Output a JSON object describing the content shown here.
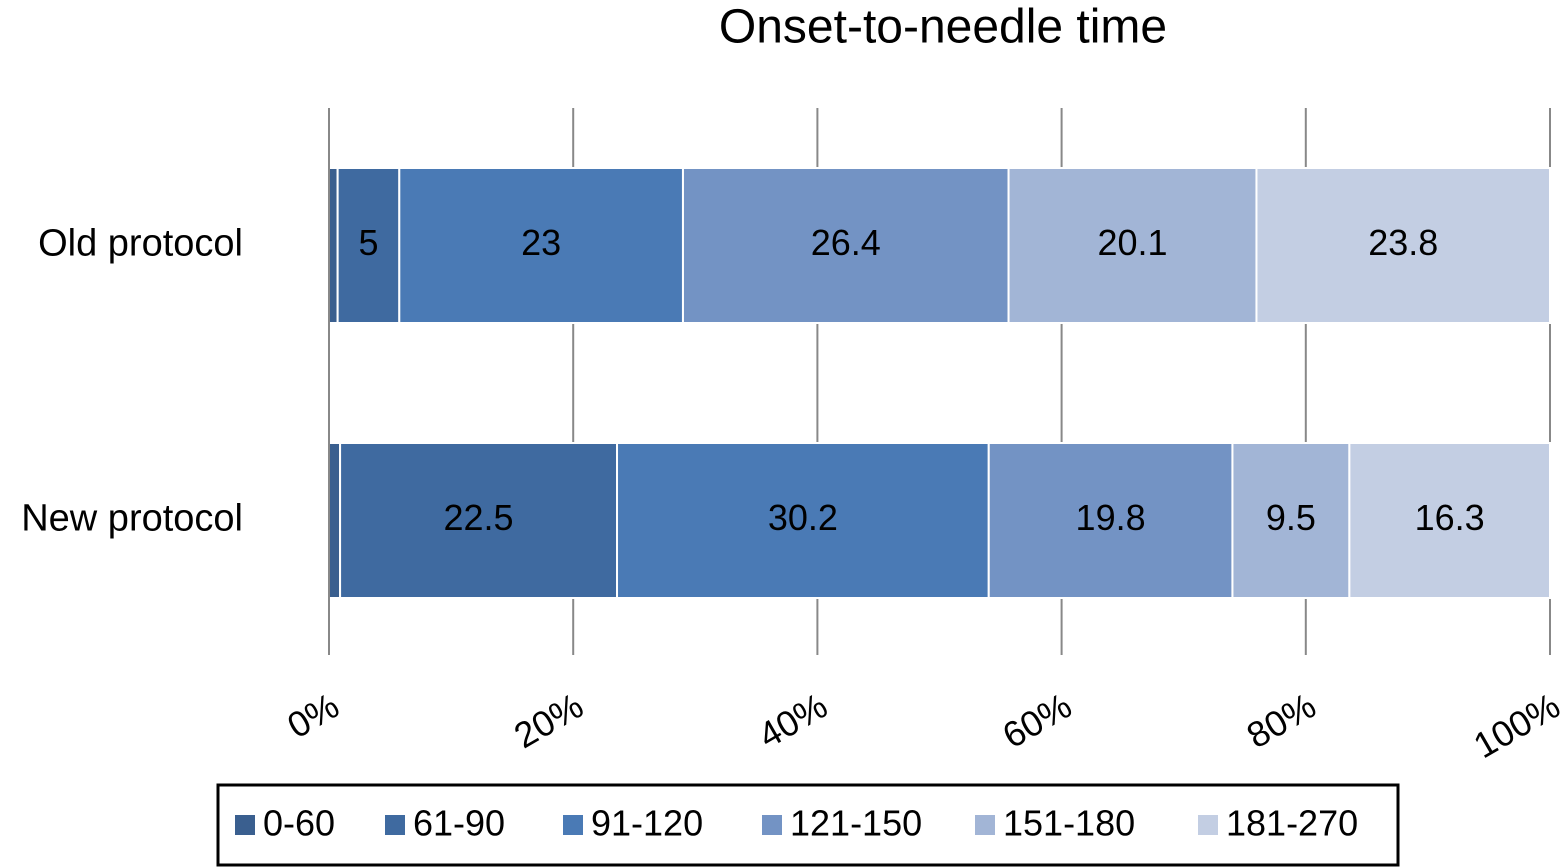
{
  "chart_data": {
    "type": "bar",
    "orientation": "horizontal",
    "stacked": "percent",
    "title": "Onset-to-needle time",
    "categories": [
      "Old protocol",
      "New protocol"
    ],
    "series": [
      {
        "name": "0-60",
        "color": "#3a5f8f",
        "values": [
          0.7,
          0.9
        ]
      },
      {
        "name": "61-90",
        "color": "#3f6aa0",
        "values": [
          5,
          22.5
        ]
      },
      {
        "name": "91-120",
        "color": "#4a7ab5",
        "values": [
          23,
          30.2
        ]
      },
      {
        "name": "121-150",
        "color": "#7393c4",
        "values": [
          26.4,
          19.8
        ]
      },
      {
        "name": "151-180",
        "color": "#a2b5d6",
        "values": [
          20.1,
          9.5
        ]
      },
      {
        "name": "181-270",
        "color": "#c3cee3",
        "values": [
          23.8,
          16.3
        ]
      }
    ],
    "value_labels_shown_from_series": 1,
    "xlim": [
      0,
      100
    ],
    "xticks": [
      {
        "value": 0,
        "label": "0%"
      },
      {
        "value": 20,
        "label": "20%"
      },
      {
        "value": 40,
        "label": "40%"
      },
      {
        "value": 60,
        "label": "60%"
      },
      {
        "value": 80,
        "label": "80%"
      },
      {
        "value": 100,
        "label": "100%"
      }
    ],
    "grid": true,
    "legend": "bottom"
  }
}
